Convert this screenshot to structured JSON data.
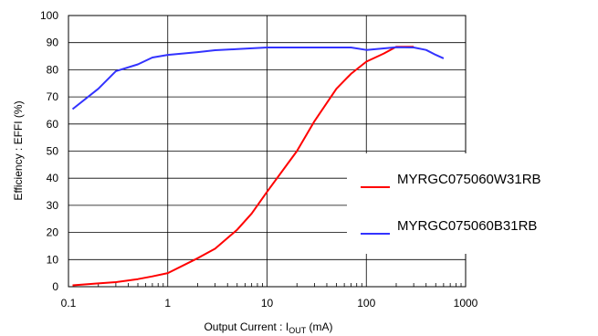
{
  "chart_data": {
    "type": "line",
    "x_scale": "log",
    "xlim": [
      0.1,
      1000
    ],
    "ylim": [
      0,
      100
    ],
    "x_ticks": [
      0.1,
      1,
      10,
      100,
      1000
    ],
    "x_tick_labels": [
      "0.1",
      "1",
      "10",
      "100",
      "1000"
    ],
    "y_ticks": [
      0,
      10,
      20,
      30,
      40,
      50,
      60,
      70,
      80,
      90,
      100
    ],
    "y_tick_labels": [
      "0",
      "10",
      "20",
      "30",
      "40",
      "50",
      "60",
      "70",
      "80",
      "90",
      "100"
    ],
    "ylabel": "Efficiency : EFFI (%)",
    "xlabel": {
      "prefix": "Output Current : I",
      "sub": "OUT",
      "suffix": " (mA)"
    },
    "grid": true,
    "legend_position": "right",
    "series": [
      {
        "name": "MYRGC075060W31RB",
        "color": "#ff0000",
        "points": [
          [
            0.11,
            0.5
          ],
          [
            0.2,
            1.2
          ],
          [
            0.3,
            1.7
          ],
          [
            0.5,
            2.8
          ],
          [
            0.7,
            3.8
          ],
          [
            1,
            5
          ],
          [
            2,
            10.5
          ],
          [
            3,
            14
          ],
          [
            5,
            21
          ],
          [
            7,
            27
          ],
          [
            10,
            35
          ],
          [
            20,
            50
          ],
          [
            30,
            61
          ],
          [
            50,
            73
          ],
          [
            70,
            78.5
          ],
          [
            100,
            83
          ],
          [
            150,
            86
          ],
          [
            200,
            88.5
          ],
          [
            300,
            88.5
          ]
        ]
      },
      {
        "name": "MYRGC075060B31RB",
        "color": "#3333ff",
        "points": [
          [
            0.11,
            65.5
          ],
          [
            0.2,
            73
          ],
          [
            0.3,
            79.5
          ],
          [
            0.5,
            82
          ],
          [
            0.7,
            84.5
          ],
          [
            1,
            85.5
          ],
          [
            2,
            86.5
          ],
          [
            3,
            87.2
          ],
          [
            5,
            87.6
          ],
          [
            10,
            88.2
          ],
          [
            20,
            88.2
          ],
          [
            50,
            88.2
          ],
          [
            70,
            88.2
          ],
          [
            100,
            87.3
          ],
          [
            200,
            88.3
          ],
          [
            300,
            88.2
          ],
          [
            400,
            87.3
          ],
          [
            500,
            85.5
          ],
          [
            600,
            84.2
          ]
        ]
      }
    ]
  }
}
